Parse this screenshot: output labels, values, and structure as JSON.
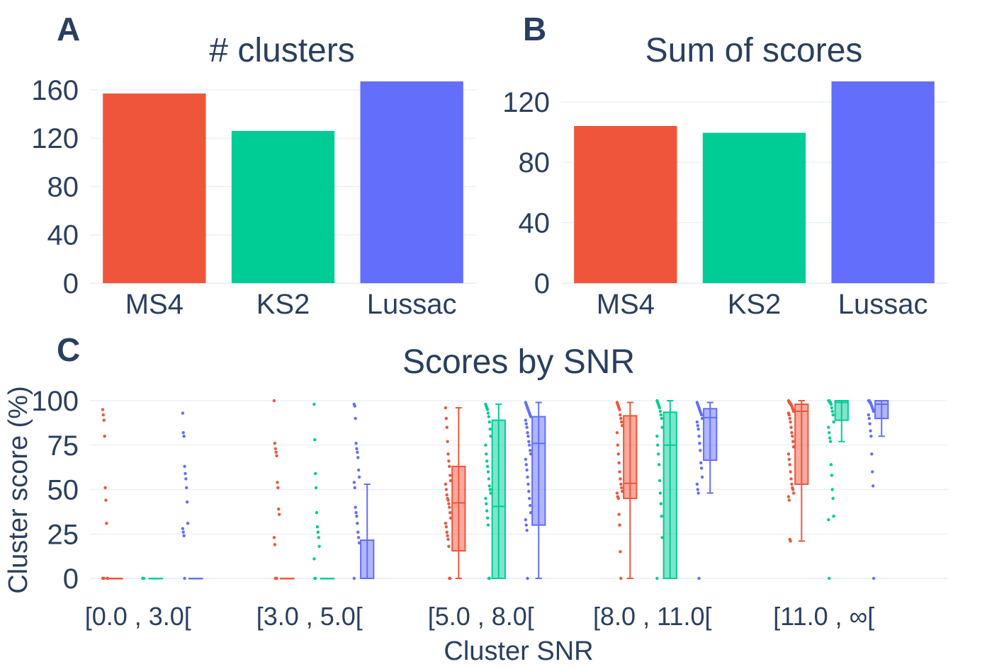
{
  "colors": {
    "MS4": "#ef553b",
    "KS2": "#00cc96",
    "Lussac": "#636efa",
    "text": "#2a3f5f",
    "grid": "#ebf0f8"
  },
  "panels": {
    "a": "A",
    "b": "B",
    "c": "C"
  },
  "chart_data": [
    {
      "type": "bar",
      "title": "# clusters",
      "categories": [
        "MS4",
        "KS2",
        "Lussac"
      ],
      "values": [
        157,
        126,
        167
      ],
      "yticks": [
        "0",
        "40",
        "80",
        "120",
        "160"
      ],
      "ylim": [
        0,
        167
      ],
      "grid": true
    },
    {
      "type": "bar",
      "title": "Sum of scores",
      "categories": [
        "MS4",
        "KS2",
        "Lussac"
      ],
      "values": [
        104,
        99.5,
        133.5
      ],
      "yticks": [
        "0",
        "40",
        "80",
        "120"
      ],
      "ylim": [
        0,
        133.5
      ],
      "grid": true
    },
    {
      "type": "box",
      "title": "Scores by SNR",
      "xlabel": "Cluster SNR",
      "ylabel": "Cluster score (%)",
      "yticks": [
        "0",
        "25",
        "50",
        "75",
        "100"
      ],
      "ylim": [
        0,
        100
      ],
      "categories": [
        "[0.0 , 3.0[",
        "[3.0 , 5.0[",
        "[5.0 , 8.0[",
        "[8.0 , 11.0[",
        "[11.0 , ∞["
      ],
      "series": [
        {
          "name": "MS4",
          "boxes": [
            {
              "lower": 0,
              "q1": 0,
              "median": 0,
              "q3": 0,
              "upper": 0,
              "points": [
                95,
                92,
                89,
                80,
                51,
                44,
                31,
                0,
                0,
                0,
                0,
                0
              ]
            },
            {
              "lower": 0,
              "q1": 0,
              "median": 0,
              "q3": 0,
              "upper": 0,
              "points": [
                100,
                76,
                73,
                71,
                69,
                54,
                51,
                39,
                36,
                23,
                19,
                0,
                0,
                0
              ]
            },
            {
              "lower": 0,
              "q1": 15.5,
              "median": 42.5,
              "q3": 63,
              "upper": 96,
              "points": [
                96,
                90,
                85,
                77,
                70,
                66,
                63,
                58,
                55,
                53,
                50,
                47,
                45,
                44,
                42,
                40,
                37,
                34,
                31,
                29,
                26,
                24,
                22,
                18,
                0,
                0
              ]
            },
            {
              "lower": 0,
              "q1": 45,
              "median": 53.5,
              "q3": 91.5,
              "upper": 99,
              "points": [
                99,
                98,
                97,
                96,
                95,
                92,
                90,
                88,
                86,
                82,
                75,
                70,
                65,
                60,
                56,
                53,
                51,
                49,
                48,
                46,
                45,
                36,
                30,
                15,
                0
              ]
            },
            {
              "lower": 21,
              "q1": 53,
              "median": 94,
              "q3": 98,
              "upper": 100,
              "points": [
                100,
                99,
                99,
                98,
                98,
                97,
                96,
                95,
                94,
                93,
                92,
                90,
                88,
                85,
                82,
                80,
                77,
                74,
                70,
                67,
                64,
                60,
                56,
                53,
                51,
                50,
                48,
                46,
                44,
                22,
                21
              ]
            }
          ]
        },
        {
          "name": "KS2",
          "boxes": [
            {
              "lower": 0,
              "q1": 0,
              "median": 0,
              "q3": 0,
              "upper": 0,
              "points": [
                0,
                0,
                0
              ]
            },
            {
              "lower": 0,
              "q1": 0,
              "median": 0,
              "q3": 0,
              "upper": 0,
              "points": [
                98,
                78,
                59,
                51,
                37,
                29,
                26,
                23,
                18,
                11,
                0,
                0
              ]
            },
            {
              "lower": 0,
              "q1": 0,
              "median": 40.5,
              "q3": 89,
              "upper": 98,
              "points": [
                98,
                97,
                96,
                95,
                93,
                91,
                88,
                84,
                80,
                75,
                70,
                66,
                63,
                60,
                56,
                52,
                50,
                48,
                45,
                42,
                38,
                34,
                30,
                0,
                0
              ]
            },
            {
              "lower": 0,
              "q1": 0,
              "median": 75,
              "q3": 93.5,
              "upper": 100,
              "points": [
                100,
                99,
                98,
                97,
                96,
                94,
                92,
                90,
                85,
                80,
                75,
                70,
                64,
                55,
                48,
                42,
                35,
                23,
                0
              ]
            },
            {
              "lower": 77,
              "q1": 89,
              "median": 99,
              "q3": 100,
              "upper": 100,
              "points": [
                100,
                100,
                99,
                99,
                98,
                96,
                94,
                92,
                88,
                85,
                82,
                79,
                77,
                64,
                58,
                50,
                45,
                35,
                33,
                0
              ]
            }
          ]
        },
        {
          "name": "Lussac",
          "boxes": [
            {
              "lower": 0,
              "q1": 0,
              "median": 0,
              "q3": 0,
              "upper": 0,
              "points": [
                93,
                82,
                80,
                63,
                59,
                56,
                51,
                43,
                31,
                28,
                26,
                24,
                0
              ]
            },
            {
              "lower": 0,
              "q1": 0,
              "median": 0,
              "q3": 21.5,
              "upper": 53,
              "points": [
                98,
                97,
                90,
                76,
                73,
                71,
                68,
                61,
                57,
                54,
                51,
                40,
                37,
                35,
                31,
                26,
                23,
                20,
                0
              ]
            },
            {
              "lower": 0,
              "q1": 30,
              "median": 76,
              "q3": 91,
              "upper": 99,
              "points": [
                99,
                98,
                97,
                96,
                95,
                94,
                93,
                92,
                91,
                89,
                87,
                85,
                82,
                80,
                77,
                75,
                72,
                70,
                67,
                64,
                61,
                57,
                53,
                49,
                45,
                41,
                37,
                33,
                30,
                27,
                0
              ]
            },
            {
              "lower": 48,
              "q1": 66.5,
              "median": 90.5,
              "q3": 95.5,
              "upper": 99,
              "points": [
                99,
                98,
                97,
                96,
                95,
                94,
                93,
                92,
                90,
                88,
                86,
                84,
                80,
                76,
                72,
                65,
                62,
                57,
                53,
                50,
                48,
                0
              ]
            },
            {
              "lower": 80,
              "q1": 90,
              "median": 98,
              "q3": 100,
              "upper": 100,
              "points": [
                100,
                100,
                99,
                99,
                98,
                97,
                96,
                95,
                94,
                92,
                90,
                87,
                83,
                80,
                70,
                60,
                52,
                0
              ]
            }
          ]
        }
      ]
    }
  ]
}
